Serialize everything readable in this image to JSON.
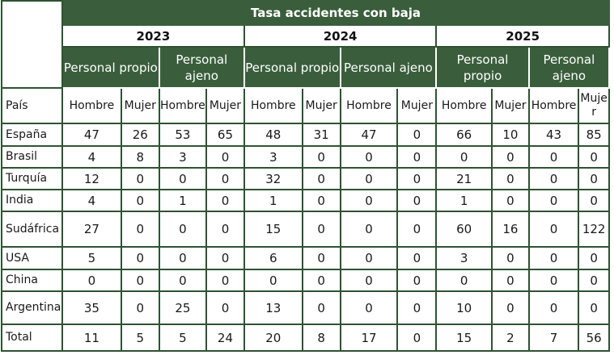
{
  "title": "Tasa accidentes con baja",
  "years": [
    "2023",
    "2024",
    "2025"
  ],
  "groups": [
    "Personal propio",
    "Personal ajeno",
    "Personal propio",
    "Personal ajeno",
    "Personal propio",
    "Personal ajeno"
  ],
  "country_header": "País",
  "gender_labels": [
    "Hombre",
    "Mujer",
    "Hombre",
    "Mujer",
    "Hombre",
    "Mujer",
    "Hombre",
    "Mujer",
    "Hombre",
    "Mujer",
    "Hombre",
    "Mujer"
  ],
  "rows": [
    {
      "country": "España",
      "values": [
        "47",
        "26",
        "53",
        "65",
        "48",
        "31",
        "47",
        "0",
        "66",
        "10",
        "43",
        "85"
      ]
    },
    {
      "country": "Brasil",
      "values": [
        "4",
        "8",
        "3",
        "0",
        "3",
        "0",
        "0",
        "0",
        "0",
        "0",
        "0",
        "0"
      ]
    },
    {
      "country": "Turquía",
      "values": [
        "12",
        "0",
        "0",
        "0",
        "32",
        "0",
        "0",
        "0",
        "21",
        "0",
        "0",
        "0"
      ]
    },
    {
      "country": "India",
      "values": [
        "4",
        "0",
        "1",
        "0",
        "1",
        "0",
        "0",
        "0",
        "1",
        "0",
        "0",
        "0"
      ]
    },
    {
      "country": "Sudáfrica",
      "values": [
        "27",
        "0",
        "0",
        "0",
        "15",
        "0",
        "0",
        "0",
        "60",
        "16",
        "0",
        "122"
      ]
    },
    {
      "country": "USA",
      "values": [
        "5",
        "0",
        "0",
        "0",
        "6",
        "0",
        "0",
        "0",
        "3",
        "0",
        "0",
        "0"
      ]
    },
    {
      "country": "China",
      "values": [
        "0",
        "0",
        "0",
        "0",
        "0",
        "0",
        "0",
        "0",
        "0",
        "0",
        "0",
        "0"
      ]
    },
    {
      "country": "Argentina",
      "values": [
        "35",
        "0",
        "25",
        "0",
        "13",
        "0",
        "0",
        "0",
        "10",
        "0",
        "0",
        "0"
      ]
    },
    {
      "country": "Total",
      "values": [
        "11",
        "5",
        "5",
        "24",
        "20",
        "8",
        "17",
        "0",
        "15",
        "2",
        "7",
        "56"
      ]
    }
  ]
}
